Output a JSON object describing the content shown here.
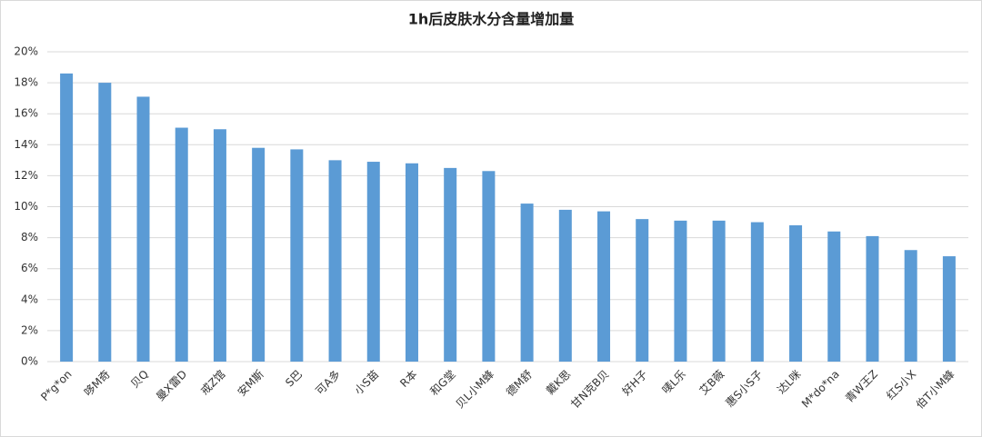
{
  "chart_data": {
    "type": "bar",
    "title": "1h后皮肤水分含量增加量",
    "categories": [
      "P*g*on",
      "哆M奇",
      "贝Q",
      "曼X雷D",
      "戒Z馆",
      "安M斯",
      "S巴",
      "可A多",
      "小S苗",
      "R本",
      "和G堂",
      "贝L小M蜂",
      "德M舒",
      "戴K思",
      "甘N克B贝",
      "好H子",
      "唛L乐",
      "艾B薇",
      "惠S小S子",
      "达L咪",
      "M*do*na",
      "青W王Z",
      "红S小X",
      "伯T小M蜂"
    ],
    "values": [
      18.6,
      18.0,
      17.1,
      15.1,
      15.0,
      13.8,
      13.7,
      13.0,
      12.9,
      12.8,
      12.5,
      12.3,
      10.2,
      9.8,
      9.7,
      9.2,
      9.1,
      9.1,
      9.0,
      8.8,
      8.4,
      8.1,
      7.2,
      6.8
    ],
    "color": "#5b9bd5",
    "ylim": [
      0,
      20
    ],
    "yticks": [
      {
        "value": 0,
        "label": "0%"
      },
      {
        "value": 2,
        "label": "2%"
      },
      {
        "value": 4,
        "label": "4%"
      },
      {
        "value": 6,
        "label": "6%"
      },
      {
        "value": 8,
        "label": "8%"
      },
      {
        "value": 10,
        "label": "10%"
      },
      {
        "value": 12,
        "label": "12%"
      },
      {
        "value": 14,
        "label": "14%"
      },
      {
        "value": 16,
        "label": "16%"
      },
      {
        "value": 18,
        "label": "18%"
      },
      {
        "value": 20,
        "label": "20%"
      }
    ],
    "grid": true
  }
}
